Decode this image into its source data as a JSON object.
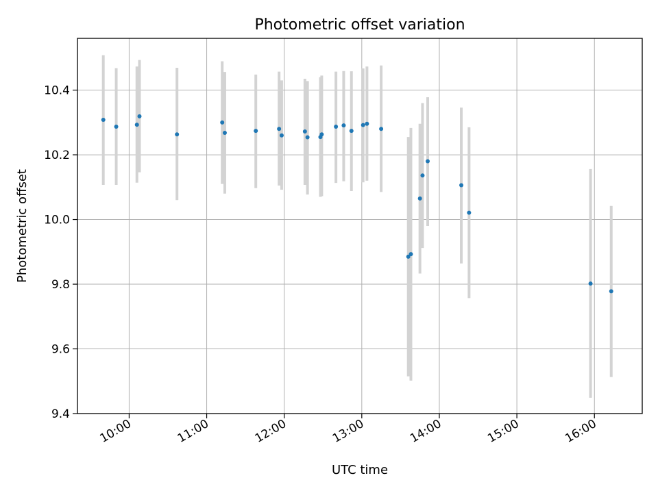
{
  "chart_data": {
    "type": "scatter",
    "title": "Photometric offset variation",
    "xlabel": "UTC time",
    "ylabel": "Photometric offset",
    "xlim": [
      "09:20",
      "16:37"
    ],
    "ylim": [
      9.4,
      10.56
    ],
    "x_ticks": [
      "10:00",
      "11:00",
      "12:00",
      "13:00",
      "14:00",
      "15:00",
      "16:00"
    ],
    "y_ticks": [
      9.4,
      9.6,
      9.8,
      10.0,
      10.2,
      10.4
    ],
    "y_tick_labels": [
      "9.4",
      "9.6",
      "9.8",
      "10.0",
      "10.2",
      "10.4"
    ],
    "grid": true,
    "marker_color": "#1f77b4",
    "errorbar_color": "#d3d3d3",
    "points": [
      {
        "time": "09:40",
        "y": 10.308,
        "ylow": 10.107,
        "yhigh": 10.508
      },
      {
        "time": "09:50",
        "y": 10.287,
        "ylow": 10.107,
        "yhigh": 10.468
      },
      {
        "time": "10:06",
        "y": 10.293,
        "ylow": 10.114,
        "yhigh": 10.473
      },
      {
        "time": "10:08",
        "y": 10.319,
        "ylow": 10.146,
        "yhigh": 10.493
      },
      {
        "time": "10:37",
        "y": 10.263,
        "ylow": 10.06,
        "yhigh": 10.469
      },
      {
        "time": "11:12",
        "y": 10.3,
        "ylow": 10.11,
        "yhigh": 10.489
      },
      {
        "time": "11:14",
        "y": 10.268,
        "ylow": 10.08,
        "yhigh": 10.456
      },
      {
        "time": "11:38",
        "y": 10.274,
        "ylow": 10.097,
        "yhigh": 10.448
      },
      {
        "time": "11:56",
        "y": 10.28,
        "ylow": 10.105,
        "yhigh": 10.457
      },
      {
        "time": "11:58",
        "y": 10.26,
        "ylow": 10.092,
        "yhigh": 10.43
      },
      {
        "time": "12:16",
        "y": 10.272,
        "ylow": 10.107,
        "yhigh": 10.435
      },
      {
        "time": "12:18",
        "y": 10.254,
        "ylow": 10.077,
        "yhigh": 10.428
      },
      {
        "time": "12:28",
        "y": 10.255,
        "ylow": 10.07,
        "yhigh": 10.44
      },
      {
        "time": "12:29",
        "y": 10.263,
        "ylow": 10.072,
        "yhigh": 10.445
      },
      {
        "time": "12:40",
        "y": 10.287,
        "ylow": 10.113,
        "yhigh": 10.457
      },
      {
        "time": "12:46",
        "y": 10.291,
        "ylow": 10.118,
        "yhigh": 10.459
      },
      {
        "time": "12:52",
        "y": 10.274,
        "ylow": 10.088,
        "yhigh": 10.458
      },
      {
        "time": "13:01",
        "y": 10.292,
        "ylow": 10.115,
        "yhigh": 10.467
      },
      {
        "time": "13:04",
        "y": 10.296,
        "ylow": 10.12,
        "yhigh": 10.473
      },
      {
        "time": "13:15",
        "y": 10.28,
        "ylow": 10.085,
        "yhigh": 10.476
      },
      {
        "time": "13:36",
        "y": 9.885,
        "ylow": 9.515,
        "yhigh": 10.255
      },
      {
        "time": "13:38",
        "y": 9.893,
        "ylow": 9.502,
        "yhigh": 10.283
      },
      {
        "time": "13:45",
        "y": 10.065,
        "ylow": 9.833,
        "yhigh": 10.296
      },
      {
        "time": "13:47",
        "y": 10.136,
        "ylow": 9.912,
        "yhigh": 10.36
      },
      {
        "time": "13:51",
        "y": 10.18,
        "ylow": 9.98,
        "yhigh": 10.378
      },
      {
        "time": "14:17",
        "y": 10.106,
        "ylow": 9.864,
        "yhigh": 10.346
      },
      {
        "time": "14:23",
        "y": 10.021,
        "ylow": 9.757,
        "yhigh": 10.285
      },
      {
        "time": "15:57",
        "y": 9.802,
        "ylow": 9.449,
        "yhigh": 10.156
      },
      {
        "time": "16:13",
        "y": 9.778,
        "ylow": 9.513,
        "yhigh": 10.042
      }
    ]
  }
}
